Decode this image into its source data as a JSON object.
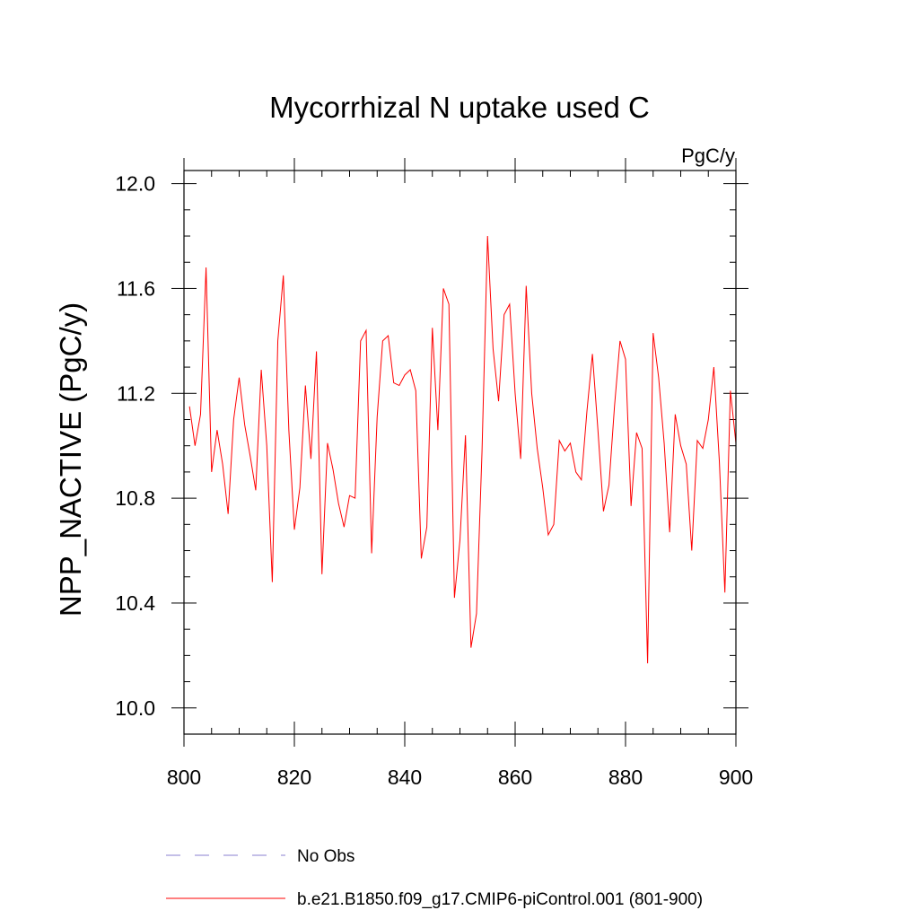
{
  "chart_data": {
    "type": "line",
    "title": "Mycorrhizal N uptake used C",
    "units_label": "PgC/y",
    "ylabel": "NPP_NACTIVE  (PgC/y)",
    "xlabel": "",
    "xlim": [
      800,
      900
    ],
    "ylim": [
      9.9,
      12.05
    ],
    "x_ticks": [
      800,
      820,
      840,
      860,
      880,
      900
    ],
    "x_tick_labels": [
      "800",
      "820",
      "840",
      "860",
      "880",
      "900"
    ],
    "y_ticks": [
      10.0,
      10.4,
      10.8,
      11.2,
      11.6,
      12.0
    ],
    "y_tick_labels": [
      "10.0",
      "10.4",
      "10.8",
      "11.2",
      "11.6",
      "12.0"
    ],
    "legend": [
      {
        "label": "No Obs",
        "color": "#8a7fd0",
        "style": "dashed"
      },
      {
        "label": "b.e21.B1850.f09_g17.CMIP6-piControl.001 (801-900)",
        "color": "#ff0000",
        "style": "solid"
      }
    ],
    "series": [
      {
        "name": "b.e21.B1850.f09_g17.CMIP6-piControl.001 (801-900)",
        "color": "#ff0000",
        "x": [
          801,
          802,
          803,
          804,
          805,
          806,
          807,
          808,
          809,
          810,
          811,
          812,
          813,
          814,
          815,
          816,
          817,
          818,
          819,
          820,
          821,
          822,
          823,
          824,
          825,
          826,
          827,
          828,
          829,
          830,
          831,
          832,
          833,
          834,
          835,
          836,
          837,
          838,
          839,
          840,
          841,
          842,
          843,
          844,
          845,
          846,
          847,
          848,
          849,
          850,
          851,
          852,
          853,
          854,
          855,
          856,
          857,
          858,
          859,
          860,
          861,
          862,
          863,
          864,
          865,
          866,
          867,
          868,
          869,
          870,
          871,
          872,
          873,
          874,
          875,
          876,
          877,
          878,
          879,
          880,
          881,
          882,
          883,
          884,
          885,
          886,
          887,
          888,
          889,
          890,
          891,
          892,
          893,
          894,
          895,
          896,
          897,
          898,
          899,
          900
        ],
        "values": [
          11.15,
          11.0,
          11.12,
          11.68,
          10.9,
          11.06,
          10.93,
          10.74,
          11.1,
          11.26,
          11.08,
          10.96,
          10.83,
          11.29,
          11.0,
          10.48,
          11.4,
          11.65,
          11.06,
          10.68,
          10.84,
          11.23,
          10.95,
          11.36,
          10.51,
          11.01,
          10.91,
          10.78,
          10.69,
          10.81,
          10.8,
          11.4,
          11.44,
          10.59,
          11.11,
          11.4,
          11.42,
          11.24,
          11.23,
          11.27,
          11.29,
          11.21,
          10.57,
          10.69,
          11.45,
          11.06,
          11.6,
          11.54,
          10.42,
          10.64,
          11.04,
          10.23,
          10.36,
          10.98,
          11.8,
          11.37,
          11.17,
          11.5,
          11.54,
          11.2,
          10.95,
          11.61,
          11.2,
          10.99,
          10.84,
          10.66,
          10.7,
          11.02,
          10.98,
          11.01,
          10.9,
          10.87,
          11.13,
          11.35,
          11.06,
          10.75,
          10.85,
          11.15,
          11.4,
          11.33,
          10.77,
          11.05,
          10.99,
          10.17,
          11.43,
          11.26,
          11.01,
          10.67,
          11.12,
          11.0,
          10.93,
          10.6,
          11.02,
          10.99,
          11.1,
          11.3,
          10.94,
          10.44,
          11.21,
          11.01
        ]
      }
    ]
  }
}
